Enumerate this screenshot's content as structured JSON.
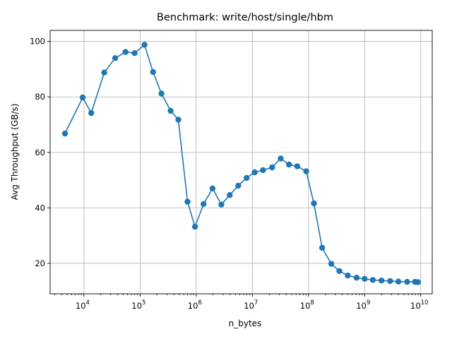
{
  "chart_data": {
    "type": "line",
    "title": "Benchmark: write/host/single/hbm",
    "xlabel": "n_bytes",
    "ylabel": "Avg Throughput (GB/s)",
    "xscale": "log",
    "xlim": [
      2500,
      16000000000
    ],
    "ylim": [
      9,
      104
    ],
    "grid": true,
    "legend": "none",
    "color": "#1f77b4",
    "x_ticks": [
      {
        "base": "10",
        "exp": "4",
        "value": 10000
      },
      {
        "base": "10",
        "exp": "5",
        "value": 100000
      },
      {
        "base": "10",
        "exp": "6",
        "value": 1000000
      },
      {
        "base": "10",
        "exp": "7",
        "value": 10000000
      },
      {
        "base": "10",
        "exp": "8",
        "value": 100000000
      },
      {
        "base": "10",
        "exp": "9",
        "value": 1000000000
      },
      {
        "base": "10",
        "exp": "10",
        "value": 10000000000
      }
    ],
    "y_ticks": [
      "20",
      "40",
      "60",
      "80",
      "100"
    ],
    "series": [
      {
        "x": [
          4600,
          9500,
          13500,
          23000,
          36000,
          55000,
          80000,
          120000,
          170000,
          240000,
          350000,
          480000,
          700000,
          950000,
          1350000,
          1950000,
          2800000,
          3950000,
          5600000,
          7900000,
          11000000,
          15500000,
          22500000,
          32000000,
          45000000,
          63000000,
          91000000,
          125000000,
          175000000,
          255000000,
          355000000,
          500000000,
          720000000,
          1000000000,
          1400000000,
          2000000000,
          2850000000,
          4000000000,
          5700000000,
          7900000000,
          8900000000
        ],
        "y": [
          66.8,
          79.8,
          74.2,
          88.8,
          94.0,
          96.2,
          95.8,
          98.8,
          89.0,
          81.2,
          75.0,
          71.8,
          42.2,
          33.2,
          41.4,
          47.0,
          41.2,
          44.6,
          48.0,
          50.8,
          52.8,
          53.6,
          54.6,
          57.8,
          55.6,
          55.0,
          53.2,
          41.6,
          25.6,
          19.8,
          17.2,
          15.6,
          14.8,
          14.4,
          14.0,
          13.8,
          13.6,
          13.4,
          13.3,
          13.3,
          13.2
        ]
      }
    ]
  }
}
